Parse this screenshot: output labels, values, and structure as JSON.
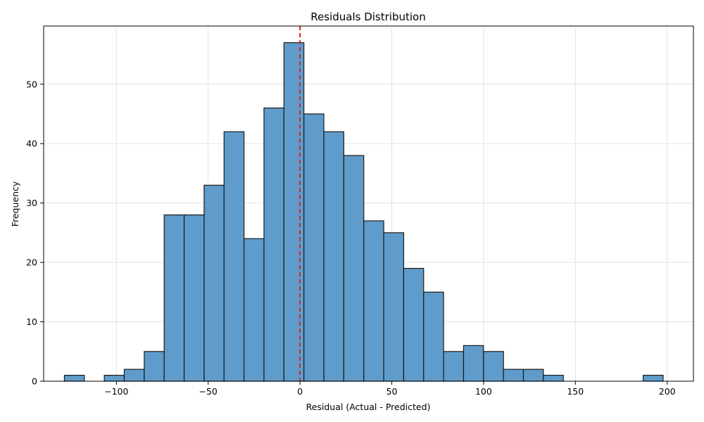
{
  "chart_data": {
    "type": "bar",
    "title": "Residuals Distribution",
    "xlabel": "Residual (Actual - Predicted)",
    "ylabel": "Frequency",
    "xlim": [
      -139.6,
      214.3
    ],
    "ylim": [
      0,
      59.8
    ],
    "xticks": [
      -100,
      -50,
      0,
      50,
      100,
      150,
      200
    ],
    "xtick_labels": [
      "−100",
      "−50",
      "0",
      "50",
      "100",
      "150",
      "200"
    ],
    "yticks": [
      0,
      10,
      20,
      30,
      40,
      50
    ],
    "ytick_labels": [
      "0",
      "10",
      "20",
      "30",
      "40",
      "50"
    ],
    "grid": true,
    "bar_color": "#5f9ccb",
    "edge_color": "#1a1a1a",
    "bins": {
      "start": -128.3,
      "width": 10.87,
      "counts": [
        1,
        0,
        1,
        2,
        5,
        28,
        28,
        33,
        42,
        24,
        46,
        57,
        45,
        42,
        38,
        27,
        25,
        19,
        15,
        5,
        6,
        5,
        2,
        2,
        1,
        0,
        0,
        0,
        0,
        1
      ]
    },
    "reference_line": {
      "x": 0,
      "color": "#d62728",
      "style": "dashed"
    }
  }
}
